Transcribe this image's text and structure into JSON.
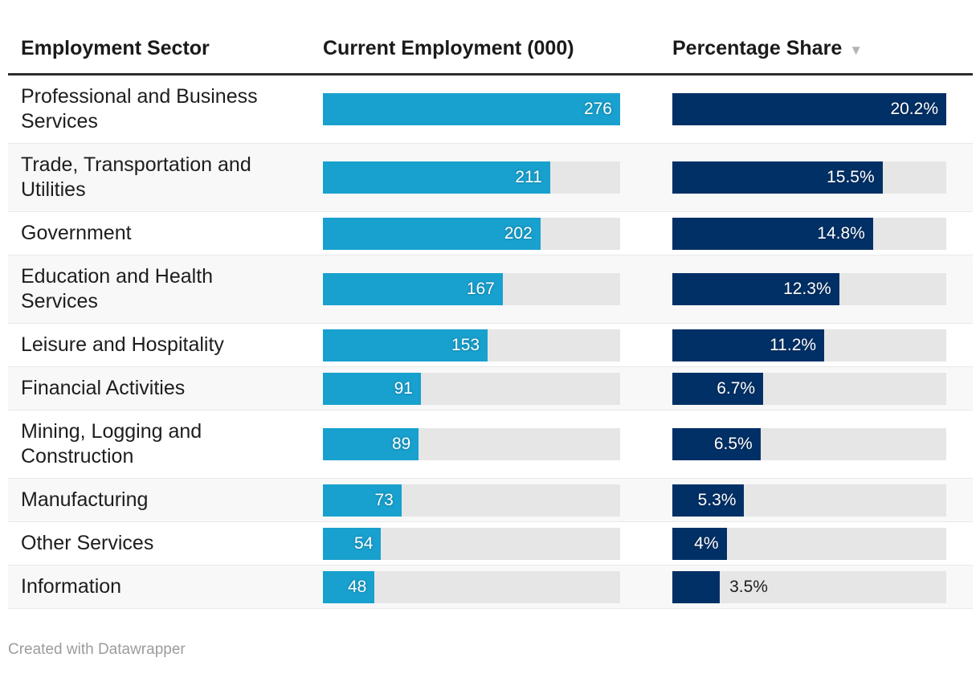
{
  "header": {
    "col_sector": "Employment Sector",
    "col_employment": "Current Employment (000)",
    "col_share": "Percentage Share",
    "sort_icon": "▼"
  },
  "rows": [
    {
      "sector": "Professional and Business Services",
      "employment": 276,
      "employment_label": "276",
      "share": 20.2,
      "share_label": "20.2%"
    },
    {
      "sector": "Trade, Transportation and Utilities",
      "employment": 211,
      "employment_label": "211",
      "share": 15.5,
      "share_label": "15.5%"
    },
    {
      "sector": "Government",
      "employment": 202,
      "employment_label": "202",
      "share": 14.8,
      "share_label": "14.8%"
    },
    {
      "sector": "Education and Health Services",
      "employment": 167,
      "employment_label": "167",
      "share": 12.3,
      "share_label": "12.3%"
    },
    {
      "sector": "Leisure and Hospitality",
      "employment": 153,
      "employment_label": "153",
      "share": 11.2,
      "share_label": "11.2%"
    },
    {
      "sector": "Financial Activities",
      "employment": 91,
      "employment_label": "91",
      "share": 6.7,
      "share_label": "6.7%"
    },
    {
      "sector": "Mining, Logging and Construction",
      "employment": 89,
      "employment_label": "89",
      "share": 6.5,
      "share_label": "6.5%"
    },
    {
      "sector": "Manufacturing",
      "employment": 73,
      "employment_label": "73",
      "share": 5.3,
      "share_label": "5.3%"
    },
    {
      "sector": "Other Services",
      "employment": 54,
      "employment_label": "54",
      "share": 4,
      "share_label": "4%"
    },
    {
      "sector": "Information",
      "employment": 48,
      "employment_label": "48",
      "share": 3.5,
      "share_label": "3.5%"
    }
  ],
  "scale": {
    "max_employment": 276,
    "max_share": 20.2
  },
  "colors": {
    "employment_bar": "#18a0ce",
    "share_bar": "#003066",
    "track": "#e6e6e6",
    "stripe": "#f8f8f8"
  },
  "footer": {
    "credit": "Created with Datawrapper"
  },
  "chart_data": {
    "type": "table",
    "title": "",
    "categories": [
      "Professional and Business Services",
      "Trade, Transportation and Utilities",
      "Government",
      "Education and Health Services",
      "Leisure and Hospitality",
      "Financial Activities",
      "Mining, Logging and Construction",
      "Manufacturing",
      "Other Services",
      "Information"
    ],
    "series": [
      {
        "name": "Current Employment (000)",
        "values": [
          276,
          211,
          202,
          167,
          153,
          91,
          89,
          73,
          54,
          48
        ],
        "bar_scale_max": 276
      },
      {
        "name": "Percentage Share",
        "values": [
          20.2,
          15.5,
          14.8,
          12.3,
          11.2,
          6.7,
          6.5,
          5.3,
          4,
          3.5
        ],
        "bar_scale_max": 20.2
      }
    ],
    "sorted_by": "Percentage Share",
    "sort_order": "descending",
    "legend_position": "none",
    "grid": false
  }
}
